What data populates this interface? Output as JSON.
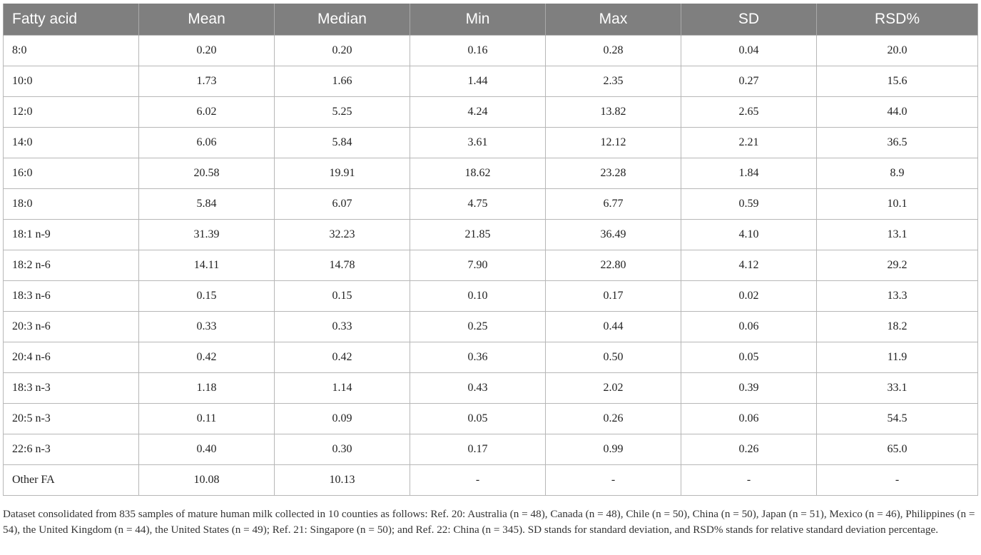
{
  "table": {
    "headers": [
      "Fatty acid",
      "Mean",
      "Median",
      "Min",
      "Max",
      "SD",
      "RSD%"
    ],
    "rows": [
      [
        "8:0",
        "0.20",
        "0.20",
        "0.16",
        "0.28",
        "0.04",
        "20.0"
      ],
      [
        "10:0",
        "1.73",
        "1.66",
        "1.44",
        "2.35",
        "0.27",
        "15.6"
      ],
      [
        "12:0",
        "6.02",
        "5.25",
        "4.24",
        "13.82",
        "2.65",
        "44.0"
      ],
      [
        "14:0",
        "6.06",
        "5.84",
        "3.61",
        "12.12",
        "2.21",
        "36.5"
      ],
      [
        "16:0",
        "20.58",
        "19.91",
        "18.62",
        "23.28",
        "1.84",
        "8.9"
      ],
      [
        "18:0",
        "5.84",
        "6.07",
        "4.75",
        "6.77",
        "0.59",
        "10.1"
      ],
      [
        "18:1 n-9",
        "31.39",
        "32.23",
        "21.85",
        "36.49",
        "4.10",
        "13.1"
      ],
      [
        "18:2 n-6",
        "14.11",
        "14.78",
        "7.90",
        "22.80",
        "4.12",
        "29.2"
      ],
      [
        "18:3 n-6",
        "0.15",
        "0.15",
        "0.10",
        "0.17",
        "0.02",
        "13.3"
      ],
      [
        "20:3 n-6",
        "0.33",
        "0.33",
        "0.25",
        "0.44",
        "0.06",
        "18.2"
      ],
      [
        "20:4 n-6",
        "0.42",
        "0.42",
        "0.36",
        "0.50",
        "0.05",
        "11.9"
      ],
      [
        "18:3 n-3",
        "1.18",
        "1.14",
        "0.43",
        "2.02",
        "0.39",
        "33.1"
      ],
      [
        "20:5 n-3",
        "0.11",
        "0.09",
        "0.05",
        "0.26",
        "0.06",
        "54.5"
      ],
      [
        "22:6 n-3",
        "0.40",
        "0.30",
        "0.17",
        "0.99",
        "0.26",
        "65.0"
      ],
      [
        "Other FA",
        "10.08",
        "10.13",
        "-",
        "-",
        "-",
        "-"
      ]
    ]
  },
  "footnote": "Dataset consolidated from 835 samples of mature human milk collected in 10 counties as follows: Ref. 20: Australia (n = 48), Canada (n = 48), Chile (n = 50), China (n = 50), Japan (n = 51), Mexico (n = 46), Philippines (n = 54), the United Kingdom (n = 44), the United States (n = 49); Ref. 21: Singapore (n = 50); and Ref. 22: China (n = 345). SD stands for standard deviation, and RSD% stands for relative standard deviation percentage.",
  "colors": {
    "header_background": "#7f7f7f",
    "header_text": "#ffffff",
    "grid_line": "#b7b7b7"
  }
}
